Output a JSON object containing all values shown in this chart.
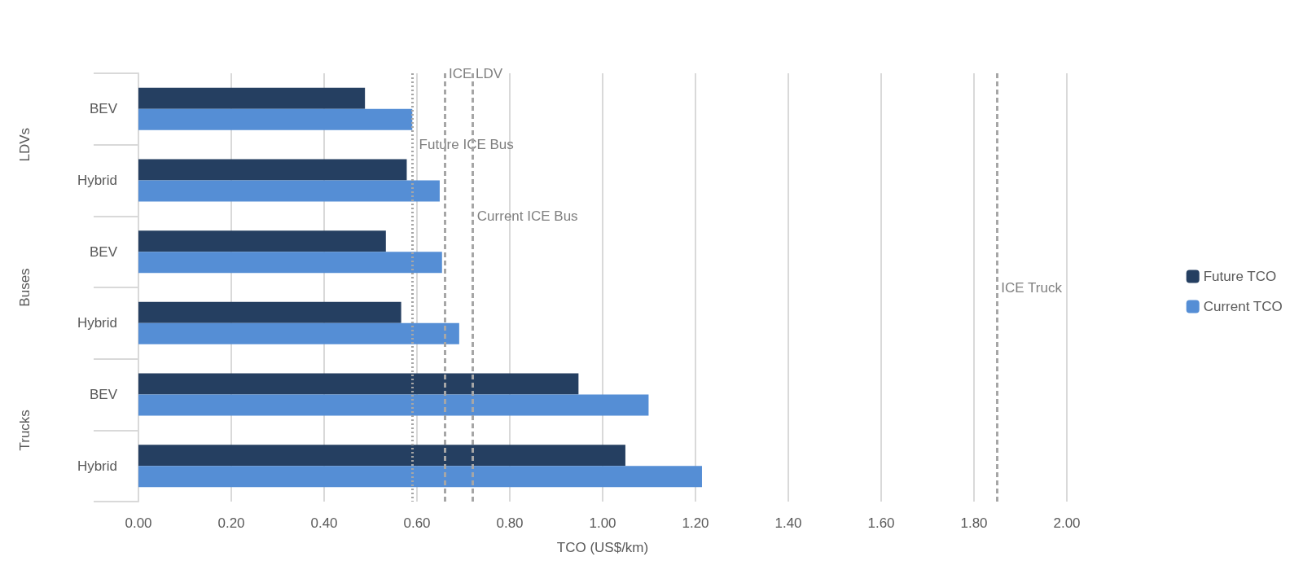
{
  "chart_data": {
    "type": "bar",
    "orientation": "horizontal",
    "xlabel": "TCO (US$/km)",
    "categories": [
      "BEV",
      "Hybrid",
      "BEV",
      "Hybrid",
      "BEV",
      "Hybrid"
    ],
    "series": [
      {
        "name": "Future TCO",
        "color": "#253f61",
        "values": [
          0.488,
          0.578,
          0.533,
          0.566,
          0.948,
          1.049
        ]
      },
      {
        "name": "Current TCO",
        "color": "#558ed5",
        "values": [
          0.59,
          0.649,
          0.654,
          0.691,
          1.099,
          1.214
        ]
      }
    ],
    "xlim": [
      0,
      2
    ],
    "xticks": [
      {
        "value": 0,
        "label": "0.00"
      },
      {
        "value": 0.2,
        "label": "0.20"
      },
      {
        "value": 0.4,
        "label": "0.40"
      },
      {
        "value": 0.6,
        "label": "0.60"
      },
      {
        "value": 0.8,
        "label": "0.80"
      },
      {
        "value": 1,
        "label": "1.00"
      },
      {
        "value": 1.2,
        "label": "1.20"
      },
      {
        "value": 1.4,
        "label": "1.40"
      },
      {
        "value": 1.6,
        "label": "1.60"
      },
      {
        "value": 1.8,
        "label": "1.80"
      },
      {
        "value": 2,
        "label": "2.00"
      }
    ],
    "ref_lines": [
      {
        "axis": "x",
        "value": 0.658,
        "label": "ICE LDV",
        "color": "#a6a6a6",
        "line_style": "dashed"
      },
      {
        "axis": "x",
        "value": 0.594,
        "label": "Future ICE Bus",
        "color": "#a6a6a6",
        "line_style": "dotted"
      },
      {
        "axis": "x",
        "value": 0.719,
        "label": "Current ICE Bus",
        "color": "#a6a6a6",
        "line_style": "dashed"
      },
      {
        "axis": "x",
        "value": 1.848,
        "label": "ICE Truck",
        "color": "#a6a6a6",
        "line_style": "dashed"
      }
    ],
    "annotations": [
      "LDVs",
      "Buses",
      "Trucks"
    ],
    "grid": "x",
    "legend": "right"
  }
}
